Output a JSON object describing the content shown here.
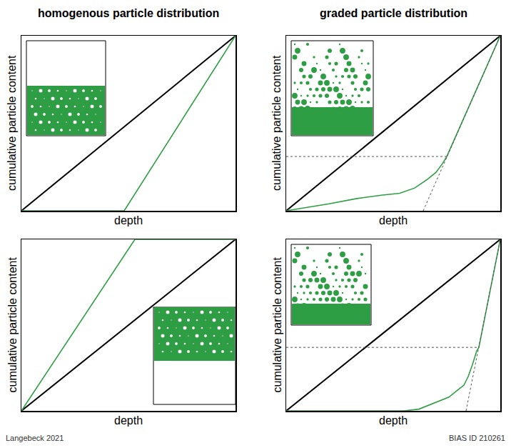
{
  "chart_data": [
    {
      "type": "line",
      "title": "homogenous particle distribution",
      "x_label": "depth",
      "y_label": "cumulative particle content",
      "xlim": [
        0,
        1
      ],
      "ylim": [
        0,
        1
      ],
      "xticks": [],
      "yticks": [],
      "tick_labels": false,
      "grid": false,
      "series": [
        {
          "color": "#000000",
          "line_style": "solid",
          "x": [
            0,
            1
          ],
          "values": [
            0,
            1
          ]
        },
        {
          "color": "#2e9e44",
          "line_style": "solid",
          "x": [
            0,
            0.48,
            1
          ],
          "values": [
            0,
            0,
            1
          ]
        }
      ]
    },
    {
      "type": "line",
      "title": "graded particle distribution",
      "x_label": "depth",
      "y_label": "cumulative particle content",
      "xlim": [
        0,
        1
      ],
      "ylim": [
        0,
        1
      ],
      "xticks": [],
      "yticks": [],
      "tick_labels": false,
      "grid": false,
      "series": [
        {
          "color": "#000000",
          "line_style": "solid",
          "x": [
            0,
            1
          ],
          "values": [
            0,
            1
          ]
        },
        {
          "color": "#2e9e44",
          "line_style": "solid",
          "x": [
            0,
            0.1,
            0.2,
            0.33,
            0.45,
            0.53,
            0.6,
            0.66,
            0.7,
            0.73,
            0.75,
            1
          ],
          "values": [
            0,
            0.02,
            0.04,
            0.07,
            0.09,
            0.1,
            0.13,
            0.18,
            0.22,
            0.27,
            0.31,
            1
          ]
        },
        {
          "color": "#555555",
          "line_style": "dotted",
          "x": [
            0.64,
            1
          ],
          "values": [
            0,
            1
          ]
        },
        {
          "color": "#555555",
          "line_style": "dotted",
          "x": [
            0,
            0.75
          ],
          "values": [
            0.31,
            0.31
          ]
        }
      ]
    },
    {
      "type": "line",
      "x_label": "depth",
      "y_label": "cumulative particle content",
      "xlim": [
        0,
        1
      ],
      "ylim": [
        0,
        1
      ],
      "xticks": [],
      "yticks": [],
      "tick_labels": false,
      "grid": false,
      "series": [
        {
          "color": "#000000",
          "line_style": "solid",
          "x": [
            0,
            1
          ],
          "values": [
            0,
            1
          ]
        },
        {
          "color": "#2e9e44",
          "line_style": "solid",
          "x": [
            0,
            0.53,
            1
          ],
          "values": [
            0,
            1,
            1
          ]
        }
      ]
    },
    {
      "type": "line",
      "x_label": "depth",
      "y_label": "cumulative particle content",
      "xlim": [
        0,
        1
      ],
      "ylim": [
        0,
        1
      ],
      "xticks": [],
      "yticks": [],
      "tick_labels": false,
      "grid": false,
      "series": [
        {
          "color": "#000000",
          "line_style": "solid",
          "x": [
            0,
            1
          ],
          "values": [
            0,
            1
          ]
        },
        {
          "color": "#2e9e44",
          "line_style": "solid",
          "x": [
            0,
            0.55,
            0.62,
            0.7,
            0.76,
            0.8,
            0.83,
            0.85,
            0.87,
            0.89,
            0.9,
            1
          ],
          "values": [
            0,
            0,
            0.01,
            0.05,
            0.08,
            0.12,
            0.15,
            0.2,
            0.27,
            0.35,
            0.37,
            1
          ]
        },
        {
          "color": "#555555",
          "line_style": "dotted",
          "x": [
            0.84,
            1
          ],
          "values": [
            0,
            1
          ]
        },
        {
          "color": "#555555",
          "line_style": "dotted",
          "x": [
            0,
            0.9
          ],
          "values": [
            0.37,
            0.37
          ]
        }
      ]
    }
  ],
  "footer": {
    "left": "Langebeck 2021",
    "right": "BIAS ID 210261"
  }
}
